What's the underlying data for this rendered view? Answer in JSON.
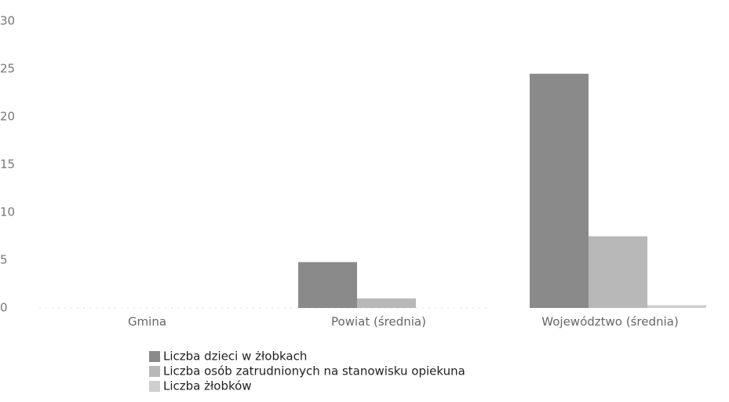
{
  "chart_data": {
    "type": "bar",
    "categories": [
      "Gmina",
      "Powiat (średnia)",
      "Województwo (średnia)"
    ],
    "series": [
      {
        "name": "Liczba dzieci w żłobkach",
        "color": "#8a8a8a",
        "values": [
          0,
          4.8,
          24.5
        ]
      },
      {
        "name": "Liczba osób zatrudnionych na stanowisku opiekuna",
        "color": "#b8b8b8",
        "values": [
          0,
          1,
          7.5
        ]
      },
      {
        "name": "Liczba żłobków",
        "color": "#cfcfcf",
        "values": [
          0,
          0,
          0.3
        ]
      }
    ],
    "ylim": [
      0,
      30
    ],
    "yticks": [
      0,
      5,
      10,
      15,
      20,
      25,
      30
    ],
    "grid": false
  }
}
